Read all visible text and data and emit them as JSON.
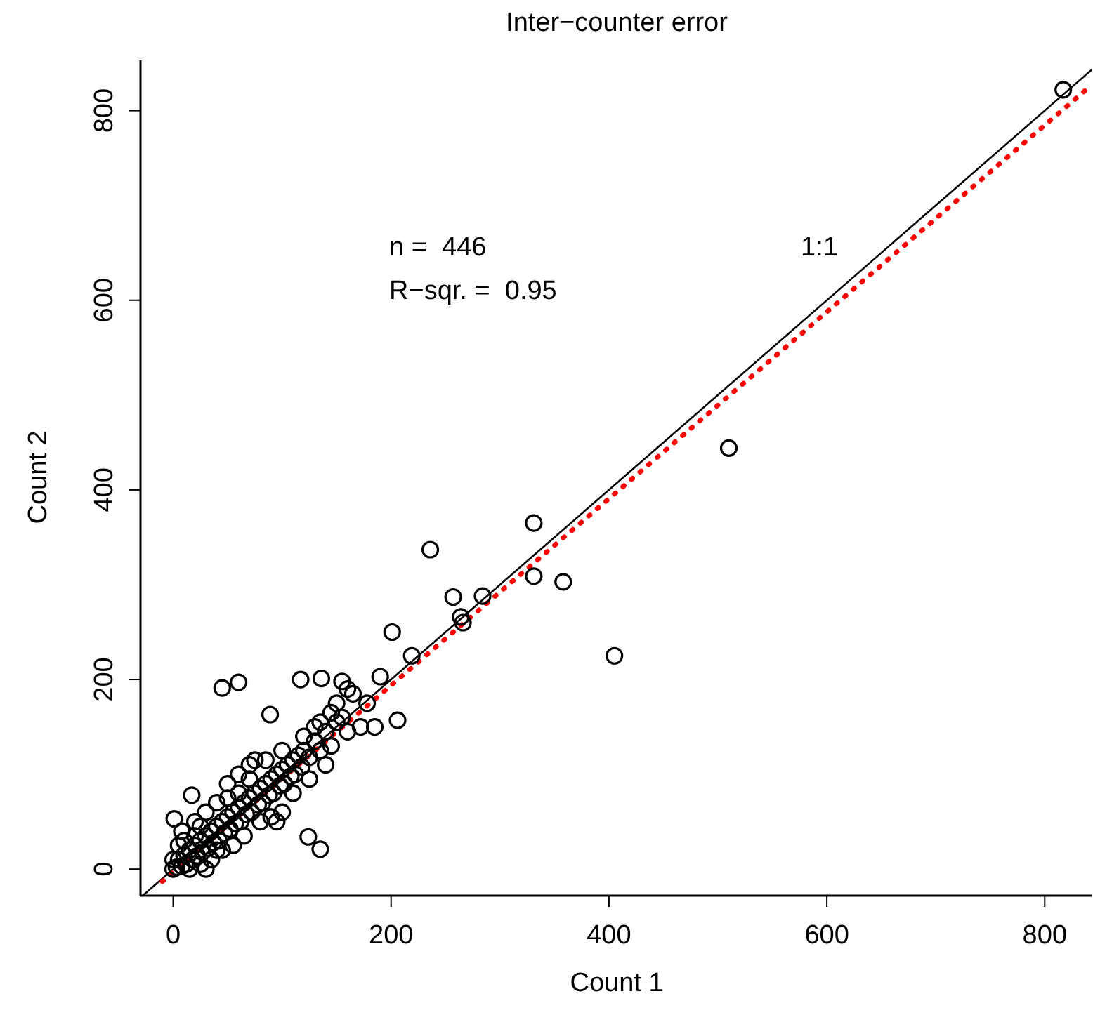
{
  "chart_data": {
    "type": "scatter",
    "title": "Inter−counter error",
    "xlabel": "Count 1",
    "ylabel": "Count 2",
    "xlim": [
      -30,
      843
    ],
    "ylim": [
      -28,
      853
    ],
    "xticks": [
      0,
      200,
      400,
      600,
      800
    ],
    "yticks": [
      0,
      200,
      400,
      600,
      800
    ],
    "annotations": [
      "n =  446",
      "R−sqr. =  0.95",
      "1:1"
    ],
    "series": [
      {
        "color": "#000000",
        "marker": "circle",
        "x": [
          1,
          17,
          45,
          60,
          89,
          117,
          136,
          124,
          135,
          155,
          160,
          150,
          165,
          178,
          172,
          190,
          185,
          206,
          201,
          219,
          236,
          257,
          284,
          264,
          266,
          331,
          331,
          358,
          405,
          510,
          817,
          3,
          5,
          8,
          10,
          12,
          15,
          18,
          20,
          22,
          25,
          27,
          30,
          32,
          35,
          37,
          40,
          42,
          45,
          47,
          50,
          52,
          55,
          57,
          60,
          62,
          65,
          67,
          70,
          72,
          75,
          78,
          80,
          82,
          85,
          88,
          90,
          92,
          95,
          98,
          100,
          102,
          105,
          108,
          110,
          112,
          115,
          118,
          120,
          125,
          130,
          135,
          140,
          145,
          150,
          20,
          30,
          25,
          40,
          50,
          60,
          70,
          75,
          35,
          45,
          55,
          65,
          80,
          90,
          100,
          95,
          110,
          125,
          140,
          15,
          25,
          30,
          10,
          5,
          0,
          0,
          8,
          50,
          85,
          100,
          130,
          155,
          160,
          145,
          120,
          135,
          70,
          60,
          40,
          20
        ],
        "values": [
          53,
          78,
          191,
          197,
          163,
          200,
          201,
          34,
          21,
          198,
          190,
          175,
          185,
          175,
          150,
          203,
          150,
          157,
          250,
          225,
          337,
          287,
          288,
          266,
          260,
          365,
          309,
          303,
          225,
          444,
          822,
          2,
          10,
          3,
          15,
          5,
          20,
          10,
          25,
          14,
          30,
          18,
          35,
          22,
          40,
          28,
          45,
          30,
          50,
          38,
          55,
          42,
          60,
          48,
          65,
          50,
          70,
          58,
          75,
          60,
          80,
          68,
          85,
          70,
          90,
          78,
          95,
          80,
          100,
          88,
          105,
          90,
          110,
          98,
          115,
          100,
          120,
          108,
          125,
          118,
          135,
          125,
          145,
          130,
          155,
          50,
          60,
          45,
          70,
          90,
          100,
          110,
          115,
          10,
          20,
          25,
          35,
          50,
          55,
          60,
          50,
          80,
          95,
          110,
          0,
          5,
          0,
          30,
          25,
          10,
          0,
          40,
          75,
          115,
          125,
          150,
          160,
          145,
          165,
          140,
          155,
          95,
          80,
          20,
          35
        ]
      },
      {
        "type": "line",
        "color": "#000000",
        "line_style": "solid",
        "x": [
          -28,
          843
        ],
        "values": [
          -28,
          843
        ]
      },
      {
        "type": "line",
        "color": "#ff0000",
        "line_style": "dotted",
        "x": [
          -10,
          843
        ],
        "values": [
          -13,
          827
        ]
      }
    ]
  }
}
